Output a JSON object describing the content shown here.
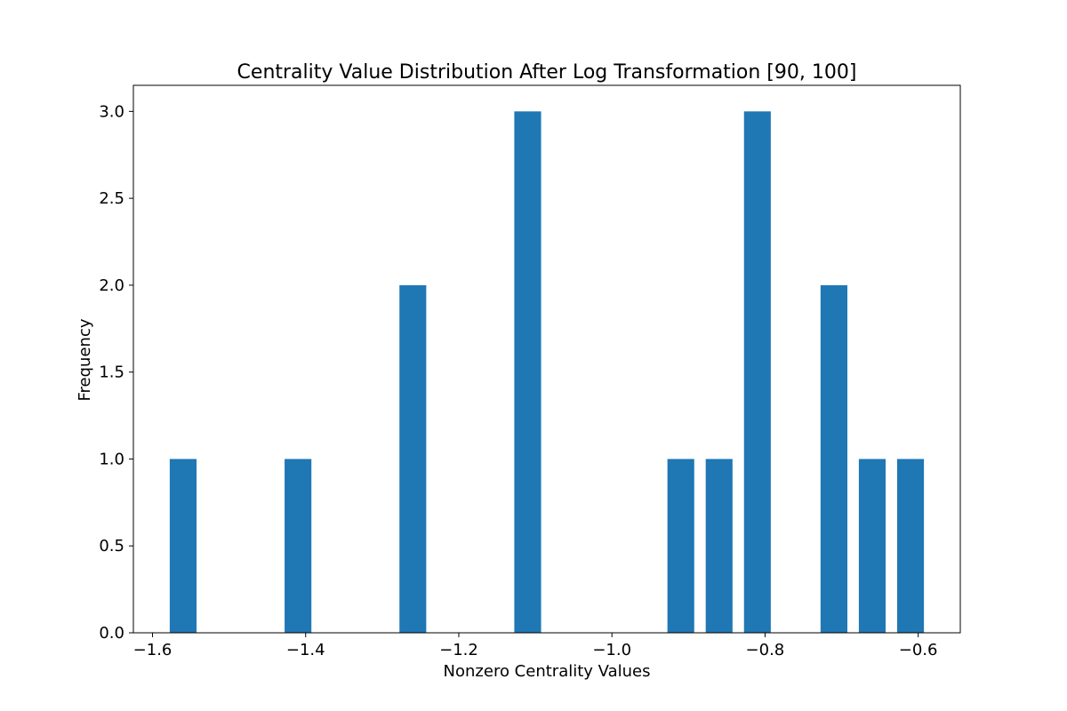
{
  "chart_data": {
    "type": "bar",
    "title": "Centrality Value Distribution After Log Transformation [90, 100]",
    "xlabel": "Nonzero Centrality Values",
    "ylabel": "Frequency",
    "xlim": [
      -1.625,
      -0.545
    ],
    "ylim": [
      0,
      3.15
    ],
    "bar_width": 0.035,
    "bar_color": "#1f77b4",
    "grid": false,
    "legend": "none",
    "x": [
      -1.56,
      -1.41,
      -1.26,
      -1.11,
      -0.91,
      -0.86,
      -0.81,
      -0.71,
      -0.66,
      -0.61
    ],
    "values": [
      1,
      1,
      2,
      3,
      1,
      1,
      3,
      2,
      1,
      1
    ],
    "x_ticks": [
      {
        "value": -1.6,
        "label": "−1.6"
      },
      {
        "value": -1.4,
        "label": "−1.4"
      },
      {
        "value": -1.2,
        "label": "−1.2"
      },
      {
        "value": -1.0,
        "label": "−1.0"
      },
      {
        "value": -0.8,
        "label": "−0.8"
      },
      {
        "value": -0.6,
        "label": "−0.6"
      }
    ],
    "y_ticks": [
      {
        "value": 0.0,
        "label": "0.0"
      },
      {
        "value": 0.5,
        "label": "0.5"
      },
      {
        "value": 1.0,
        "label": "1.0"
      },
      {
        "value": 1.5,
        "label": "1.5"
      },
      {
        "value": 2.0,
        "label": "2.0"
      },
      {
        "value": 2.5,
        "label": "2.5"
      },
      {
        "value": 3.0,
        "label": "3.0"
      }
    ]
  }
}
